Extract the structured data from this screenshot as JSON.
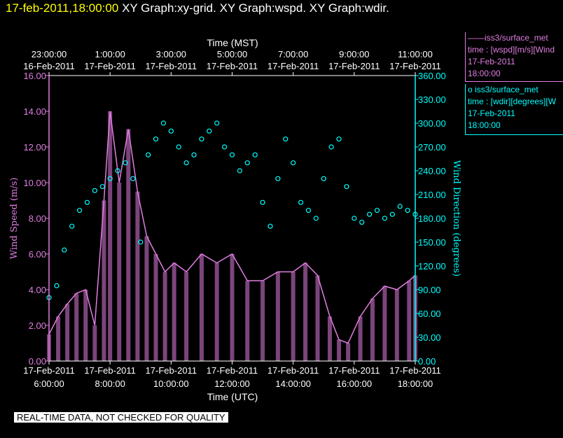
{
  "header": {
    "timestamp": "17-feb-2011,18:00:00",
    "graphs": "XY Graph:xy-grid.  XY Graph:wspd.  XY Graph:wdir."
  },
  "legend": [
    {
      "marker": "——",
      "name": "iss3/surface_met",
      "var": "time : [wspd][m/s][Wind",
      "date": "17-Feb-2011",
      "time": "18:00:00",
      "color": "#e07ee0"
    },
    {
      "marker": "o",
      "name": "iss3/surface_met",
      "var": "time : [wdir][degrees][W",
      "date": "17-Feb-2011",
      "time": "18:00:00",
      "color": "#00ffff"
    }
  ],
  "footer_note": "REAL-TIME DATA, NOT CHECKED FOR QUALITY",
  "chart_data": {
    "type": "line",
    "top_axis": {
      "label": "Time (MST)",
      "ticks": [
        {
          "time": "23:00:00",
          "date": "16-Feb-2011"
        },
        {
          "time": "1:00:00",
          "date": "17-Feb-2011"
        },
        {
          "time": "3:00:00",
          "date": "17-Feb-2011"
        },
        {
          "time": "5:00:00",
          "date": "17-Feb-2011"
        },
        {
          "time": "7:00:00",
          "date": "17-Feb-2011"
        },
        {
          "time": "9:00:00",
          "date": "17-Feb-2011"
        },
        {
          "time": "11:00:00",
          "date": "17-Feb-2011"
        }
      ]
    },
    "bottom_axis": {
      "label": "Time (UTC)",
      "ticks": [
        {
          "date": "17-Feb-2011",
          "time": "6:00:00",
          "hour": 6
        },
        {
          "date": "17-Feb-2011",
          "time": "8:00:00",
          "hour": 8
        },
        {
          "date": "17-Feb-2011",
          "time": "10:00:00",
          "hour": 10
        },
        {
          "date": "17-Feb-2011",
          "time": "12:00:00",
          "hour": 12
        },
        {
          "date": "17-Feb-2011",
          "time": "14:00:00",
          "hour": 14
        },
        {
          "date": "17-Feb-2011",
          "time": "16:00:00",
          "hour": 16
        },
        {
          "date": "17-Feb-2011",
          "time": "18:00:00",
          "hour": 18
        }
      ],
      "range_hours": [
        6,
        18
      ]
    },
    "left_axis": {
      "label": "Wind Speed (m/s)",
      "ylim": [
        0,
        16
      ],
      "ticks": [
        "0.00",
        "2.00",
        "4.00",
        "6.00",
        "8.00",
        "10.00",
        "12.00",
        "14.00",
        "16.00"
      ]
    },
    "right_axis": {
      "label": "Wind Direction (degrees)",
      "ylim": [
        0,
        360
      ],
      "ticks": [
        "0.00",
        "30.00",
        "60.00",
        "90.00",
        "120.00",
        "150.00",
        "180.00",
        "210.00",
        "240.00",
        "270.00",
        "300.00",
        "330.00",
        "360.00"
      ]
    },
    "series": [
      {
        "name": "iss3/surface_met wspd",
        "axis": "left",
        "style": "line",
        "color": "#e07ee0",
        "x": [
          6.0,
          6.3,
          6.6,
          6.9,
          7.2,
          7.5,
          7.8,
          8.0,
          8.3,
          8.6,
          8.9,
          9.2,
          9.5,
          9.8,
          10.1,
          10.5,
          11.0,
          11.5,
          12.0,
          12.5,
          13.0,
          13.5,
          14.0,
          14.4,
          14.8,
          15.2,
          15.5,
          15.8,
          16.2,
          16.6,
          17.0,
          17.4,
          17.8,
          18.0
        ],
        "y": [
          1.5,
          2.5,
          3.2,
          3.8,
          4.0,
          2.0,
          9.0,
          14.0,
          10.0,
          13.0,
          9.5,
          7.0,
          6.0,
          5.0,
          5.5,
          5.0,
          6.0,
          5.5,
          6.0,
          4.5,
          4.5,
          5.0,
          5.0,
          5.5,
          4.8,
          2.5,
          1.2,
          1.0,
          2.5,
          3.5,
          4.2,
          4.0,
          4.5,
          4.8
        ]
      },
      {
        "name": "iss3/surface_met wdir",
        "axis": "right",
        "style": "scatter",
        "color": "#00ffff",
        "x": [
          6.0,
          6.25,
          6.5,
          6.75,
          7.0,
          7.25,
          7.5,
          7.75,
          8.0,
          8.25,
          8.5,
          8.75,
          9.0,
          9.25,
          9.5,
          9.75,
          10.0,
          10.25,
          10.5,
          10.75,
          11.0,
          11.25,
          11.5,
          11.75,
          12.0,
          12.25,
          12.5,
          12.75,
          13.0,
          13.25,
          13.5,
          13.75,
          14.0,
          14.25,
          14.5,
          14.75,
          15.0,
          15.25,
          15.5,
          15.75,
          16.0,
          16.25,
          16.5,
          16.75,
          17.0,
          17.25,
          17.5,
          17.75,
          18.0
        ],
        "y": [
          80,
          95,
          140,
          170,
          190,
          200,
          215,
          220,
          230,
          240,
          250,
          230,
          150,
          260,
          280,
          300,
          290,
          270,
          250,
          260,
          280,
          290,
          300,
          270,
          260,
          240,
          250,
          260,
          200,
          170,
          230,
          280,
          250,
          200,
          190,
          180,
          230,
          270,
          280,
          220,
          180,
          175,
          185,
          190,
          180,
          185,
          195,
          190,
          185
        ]
      }
    ],
    "grid": false
  }
}
